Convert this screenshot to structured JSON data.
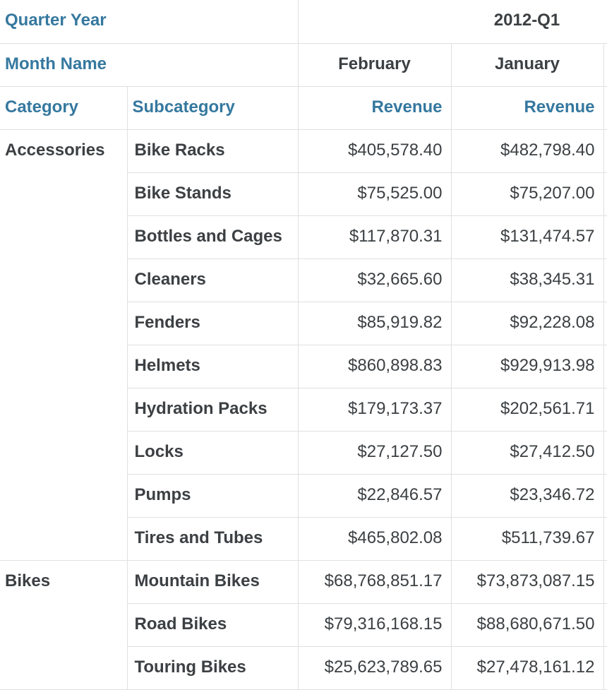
{
  "chart_data": {
    "type": "table",
    "corner": {
      "quarter_year_label": "Quarter Year",
      "month_name_label": "Month Name",
      "category_label": "Category",
      "subcategory_label": "Subcategory"
    },
    "quarter": "2012-Q1",
    "months": [
      "February",
      "January"
    ],
    "measure_header": "Revenue",
    "layout_hints": {
      "note": "pivot table cropped at right edge; a third month column is cut off at x=855",
      "grid": "light horizontal and vertical rules",
      "value_alignment": "right"
    },
    "groups": [
      {
        "category": "Accessories",
        "rows": [
          {
            "subcategory": "Bike Racks",
            "values": [
              "$405,578.40",
              "$482,798.40"
            ]
          },
          {
            "subcategory": "Bike Stands",
            "values": [
              "$75,525.00",
              "$75,207.00"
            ]
          },
          {
            "subcategory": "Bottles and Cages",
            "values": [
              "$117,870.31",
              "$131,474.57"
            ]
          },
          {
            "subcategory": "Cleaners",
            "values": [
              "$32,665.60",
              "$38,345.31"
            ]
          },
          {
            "subcategory": "Fenders",
            "values": [
              "$85,919.82",
              "$92,228.08"
            ]
          },
          {
            "subcategory": "Helmets",
            "values": [
              "$860,898.83",
              "$929,913.98"
            ]
          },
          {
            "subcategory": "Hydration Packs",
            "values": [
              "$179,173.37",
              "$202,561.71"
            ]
          },
          {
            "subcategory": "Locks",
            "values": [
              "$27,127.50",
              "$27,412.50"
            ]
          },
          {
            "subcategory": "Pumps",
            "values": [
              "$22,846.57",
              "$23,346.72"
            ]
          },
          {
            "subcategory": "Tires and Tubes",
            "values": [
              "$465,802.08",
              "$511,739.67"
            ]
          }
        ]
      },
      {
        "category": "Bikes",
        "rows": [
          {
            "subcategory": "Mountain Bikes",
            "values": [
              "$68,768,851.17",
              "$73,873,087.15"
            ]
          },
          {
            "subcategory": "Road Bikes",
            "values": [
              "$79,316,168.15",
              "$88,680,671.50"
            ]
          },
          {
            "subcategory": "Touring Bikes",
            "values": [
              "$25,623,789.65",
              "$27,478,161.12"
            ]
          }
        ]
      }
    ],
    "colors": {
      "header_text_blue": "#35789f",
      "body_text": "#3c4043",
      "border": "#e0e0e0",
      "background": "#ffffff"
    }
  }
}
